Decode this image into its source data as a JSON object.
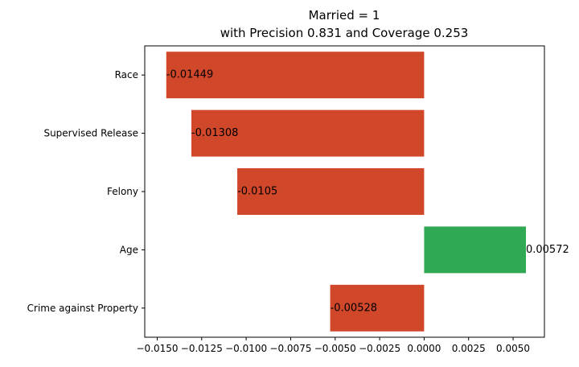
{
  "chart_data": {
    "type": "bar",
    "orientation": "horizontal",
    "title": [
      "Married = 1",
      "with Precision 0.831 and Coverage 0.253"
    ],
    "categories": [
      "Race",
      "Supervised Release",
      "Felony",
      "Age",
      "Crime against Property"
    ],
    "values": [
      -0.01449,
      -0.01308,
      -0.0105,
      0.00572,
      -0.00528
    ],
    "value_labels": [
      "-0.01449",
      "-0.01308",
      "-0.0105",
      "0.00572",
      "-0.00528"
    ],
    "xlim": [
      -0.0157,
      0.00676
    ],
    "xticks": [
      -0.015,
      -0.0125,
      -0.01,
      -0.0075,
      -0.005,
      -0.0025,
      0,
      0.0025,
      0.005
    ],
    "xtick_labels": [
      "−0.0150",
      "−0.0125",
      "−0.0100",
      "−0.0075",
      "−0.0050",
      "−0.0025",
      "0.0000",
      "0.0025",
      "0.0050"
    ],
    "xlabel": "",
    "ylabel": "",
    "grid": false,
    "colors": {
      "negative": "#d0472a",
      "positive": "#31a853",
      "axis": "#000000"
    }
  }
}
